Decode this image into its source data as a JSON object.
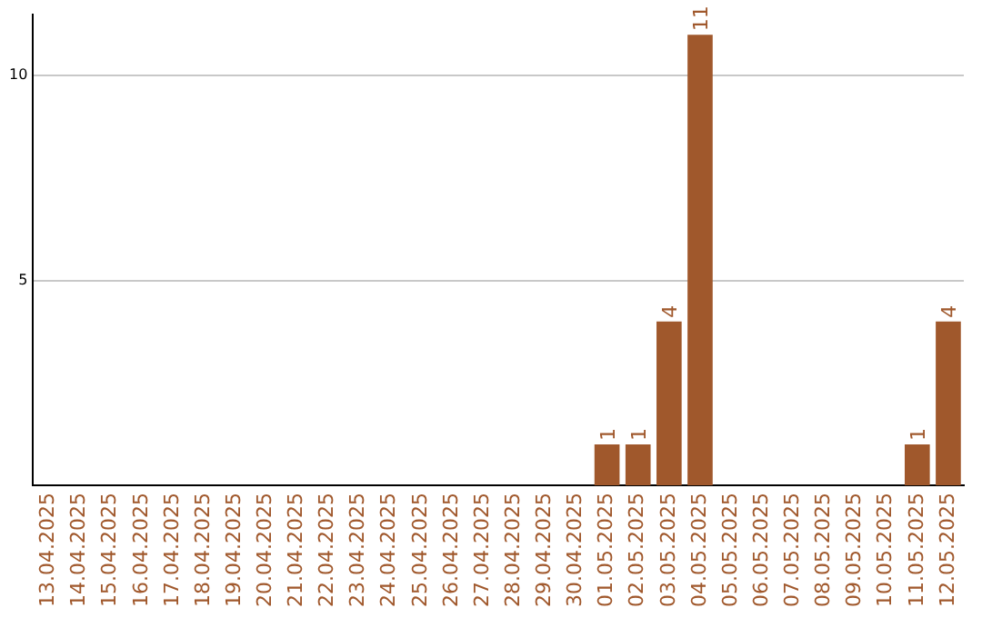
{
  "chart_data": {
    "type": "bar",
    "categories": [
      "13.04.2025",
      "14.04.2025",
      "15.04.2025",
      "16.04.2025",
      "17.04.2025",
      "18.04.2025",
      "19.04.2025",
      "20.04.2025",
      "21.04.2025",
      "22.04.2025",
      "23.04.2025",
      "24.04.2025",
      "25.04.2025",
      "26.04.2025",
      "27.04.2025",
      "28.04.2025",
      "29.04.2025",
      "30.04.2025",
      "01.05.2025",
      "02.05.2025",
      "03.05.2025",
      "04.05.2025",
      "05.05.2025",
      "06.05.2025",
      "07.05.2025",
      "08.05.2025",
      "09.05.2025",
      "10.05.2025",
      "11.05.2025",
      "12.05.2025"
    ],
    "values": [
      0,
      0,
      0,
      0,
      0,
      0,
      0,
      0,
      0,
      0,
      0,
      0,
      0,
      0,
      0,
      0,
      0,
      0,
      1,
      1,
      4,
      11,
      0,
      0,
      0,
      0,
      0,
      0,
      1,
      4
    ],
    "value_labels": [
      null,
      null,
      null,
      null,
      null,
      null,
      null,
      null,
      null,
      null,
      null,
      null,
      null,
      null,
      null,
      null,
      null,
      null,
      "1",
      "1",
      "4",
      "11",
      null,
      null,
      null,
      null,
      null,
      null,
      "1",
      "4"
    ],
    "color": "#a0582c",
    "ylim": [
      0,
      11.5
    ],
    "yticks": [
      5,
      10
    ],
    "grid": "y",
    "legend": false
  }
}
